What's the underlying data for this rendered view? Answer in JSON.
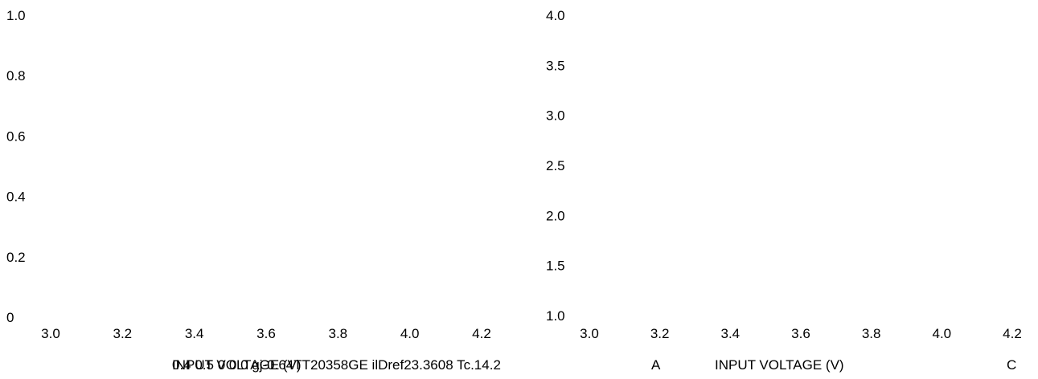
{
  "chart_data": [
    {
      "type": "line",
      "title": "",
      "xlabel": "INPUT VOLTAGE (V)",
      "ylabel": "",
      "x_ticks": [
        "3.0",
        "3.2",
        "3.4",
        "3.6",
        "3.8",
        "4.0",
        "4.2"
      ],
      "y_ticks": [
        "0",
        "0.2",
        "0.4",
        "0.6",
        "0.8",
        "1.0"
      ],
      "xlim": [
        3.0,
        4.2
      ],
      "ylim": [
        0,
        1.0
      ],
      "grid": false,
      "series": [],
      "panel_label": ""
    },
    {
      "type": "line",
      "title": "",
      "xlabel": "INPUT VOLTAGE (V)",
      "ylabel": "",
      "x_ticks": [
        "3.0",
        "3.2",
        "3.4",
        "3.6",
        "3.8",
        "4.0",
        "4.2"
      ],
      "y_ticks": [
        "1.0",
        "1.5",
        "2.0",
        "2.5",
        "3.0",
        "3.5",
        "4.0"
      ],
      "xlim": [
        3.0,
        4.2
      ],
      "ylim": [
        1.0,
        4.0
      ],
      "grid": false,
      "series": [],
      "panel_label": "A"
    }
  ],
  "footer": {
    "overlap_a": "INPUT VOLTAGE (V)",
    "overlap_b": "0.4 0.5 0 0.0 gj-0.64TT20358GE ilDref23.3608 Tc.14.2",
    "label_c": "C"
  }
}
